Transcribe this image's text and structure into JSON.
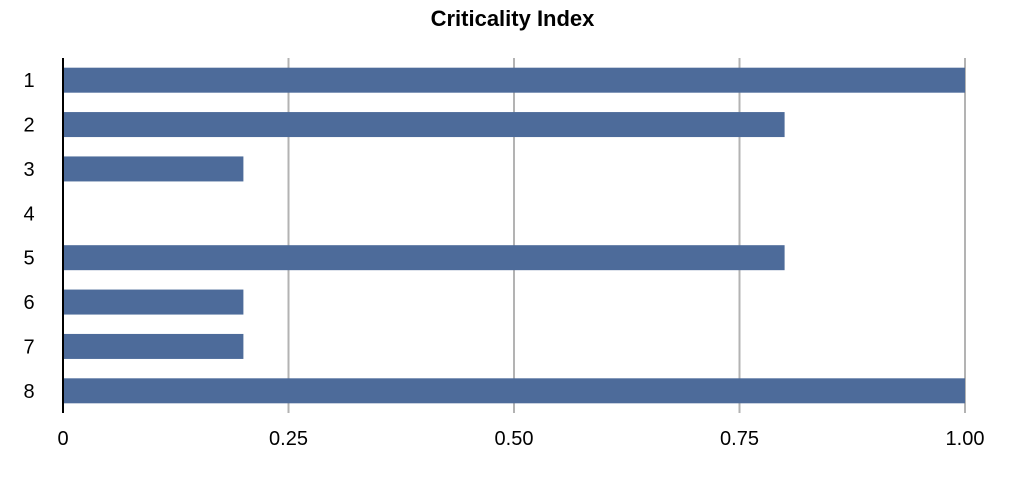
{
  "chart_data": {
    "type": "bar",
    "orientation": "horizontal",
    "title": "Criticality Index",
    "xlabel": "",
    "ylabel": "",
    "categories": [
      "1",
      "2",
      "3",
      "4",
      "5",
      "6",
      "7",
      "8"
    ],
    "values": [
      1.0,
      0.8,
      0.2,
      0.0,
      0.8,
      0.2,
      0.2,
      1.0
    ],
    "xlim": [
      0,
      1.0
    ],
    "xticks": [
      0,
      0.25,
      0.5,
      0.75,
      1.0
    ],
    "xtick_labels": [
      "0",
      "0.25",
      "0.50",
      "0.75",
      "1.00"
    ],
    "grid": "vertical",
    "legend": "none",
    "colors": {
      "bar": "#4d6b9a",
      "grid": "#b3b3b3",
      "axis": "#000000"
    }
  }
}
